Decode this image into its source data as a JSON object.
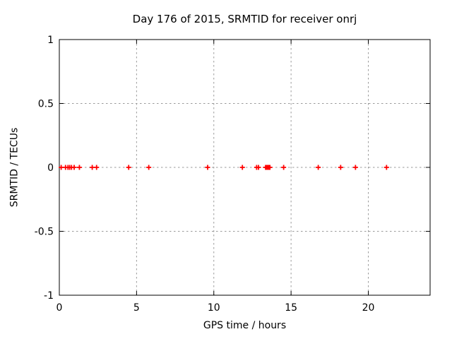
{
  "colors": {
    "background": "#ffffff",
    "plot_border": "#000000",
    "grid": "#9a9a9a",
    "text": "#000000",
    "marker": "#ff0000"
  },
  "chart_data": {
    "type": "scatter",
    "title": "Day 176 of 2015, SRMTID for receiver onrj",
    "xlabel": "GPS time / hours",
    "ylabel": "SRMTID / TECUs",
    "xlim": [
      0,
      24
    ],
    "ylim": [
      -1,
      1
    ],
    "xticks": [
      {
        "value": 0,
        "label": "0"
      },
      {
        "value": 5,
        "label": "5"
      },
      {
        "value": 10,
        "label": "10"
      },
      {
        "value": 15,
        "label": "15"
      },
      {
        "value": 20,
        "label": "20"
      }
    ],
    "yticks": [
      {
        "value": -1,
        "label": "-1"
      },
      {
        "value": -0.5,
        "label": "-0.5"
      },
      {
        "value": 0,
        "label": "0"
      },
      {
        "value": 0.5,
        "label": "0.5"
      },
      {
        "value": 1,
        "label": "1"
      }
    ],
    "grid": true,
    "legend_position": "none",
    "series": [
      {
        "name": "SRMTID",
        "marker": "plus",
        "color": "#ff0000",
        "x": [
          0.12,
          0.4,
          0.56,
          0.67,
          0.79,
          0.96,
          1.3,
          2.13,
          2.41,
          4.49,
          5.79,
          9.6,
          11.85,
          12.77,
          12.89,
          13.35,
          13.42,
          13.49,
          13.56,
          13.63,
          14.52,
          16.76,
          18.21,
          19.17,
          21.18
        ],
        "y": [
          0,
          0,
          0,
          0,
          0,
          0,
          0,
          0,
          0,
          0,
          0,
          0,
          0,
          0,
          0,
          0,
          0,
          0,
          0,
          0,
          0,
          0,
          0,
          0,
          0
        ]
      }
    ]
  }
}
